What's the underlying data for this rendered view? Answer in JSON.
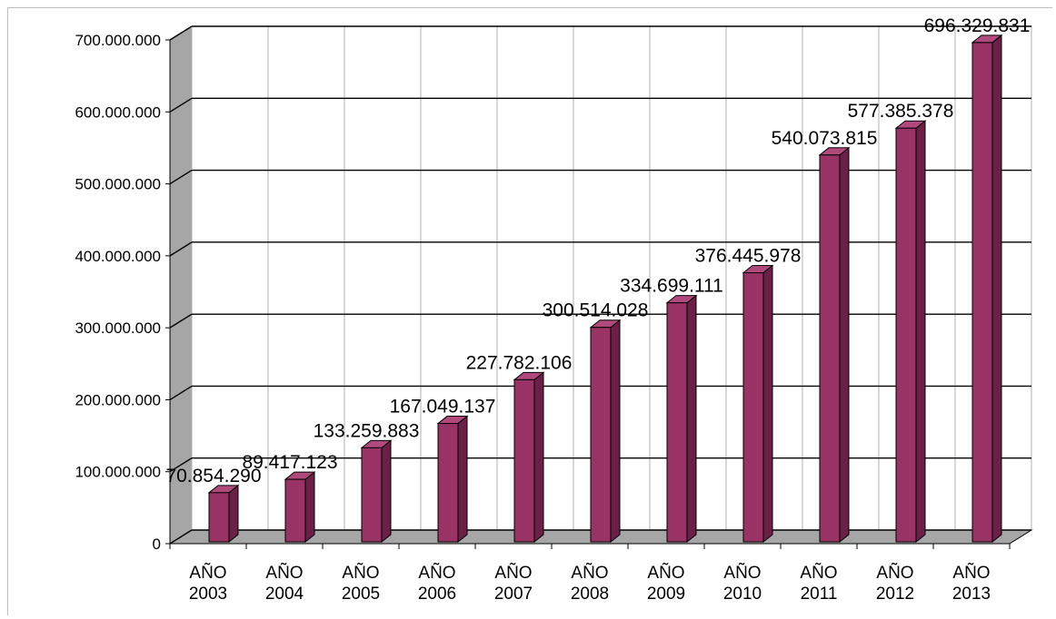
{
  "chart_data": {
    "type": "bar",
    "categories": [
      [
        "AÑO",
        "2003"
      ],
      [
        "AÑO",
        "2004"
      ],
      [
        "AÑO",
        "2005"
      ],
      [
        "AÑO",
        "2006"
      ],
      [
        "AÑO",
        "2007"
      ],
      [
        "AÑO",
        "2008"
      ],
      [
        "AÑO",
        "2009"
      ],
      [
        "AÑO",
        "2010"
      ],
      [
        "AÑO",
        "2011"
      ],
      [
        "AÑO",
        "2012"
      ],
      [
        "AÑO",
        "2013"
      ]
    ],
    "values": [
      70854290,
      89417123,
      133259883,
      167049137,
      227782106,
      300514028,
      334699111,
      376445978,
      540073815,
      577385378,
      696329831
    ],
    "data_labels": [
      "70.854.290",
      "89.417.123",
      "133.259.883",
      "167.049.137",
      "227.782.106",
      "300.514.028",
      "334.699.111",
      "376.445.978",
      "540.073.815",
      "577.385.378",
      "696.329.831"
    ],
    "ylim": [
      0,
      700000000
    ],
    "yticks": [
      0,
      100000000,
      200000000,
      300000000,
      400000000,
      500000000,
      600000000,
      700000000
    ],
    "ytick_labels": [
      "0",
      "100.000.000",
      "200.000.000",
      "300.000.000",
      "400.000.000",
      "500.000.000",
      "600.000.000",
      "700.000.000"
    ],
    "grid": "major-horizontal and vertical",
    "legend": "none",
    "style": "3d-column",
    "colors": {
      "bar_front": "#993366",
      "bar_top": "#b04a7d",
      "bar_side": "#6b2147",
      "wall": "#ffffff",
      "side_wall": "#a6a6a6",
      "floor": "#a6a6a6",
      "grid": "#000000"
    }
  }
}
